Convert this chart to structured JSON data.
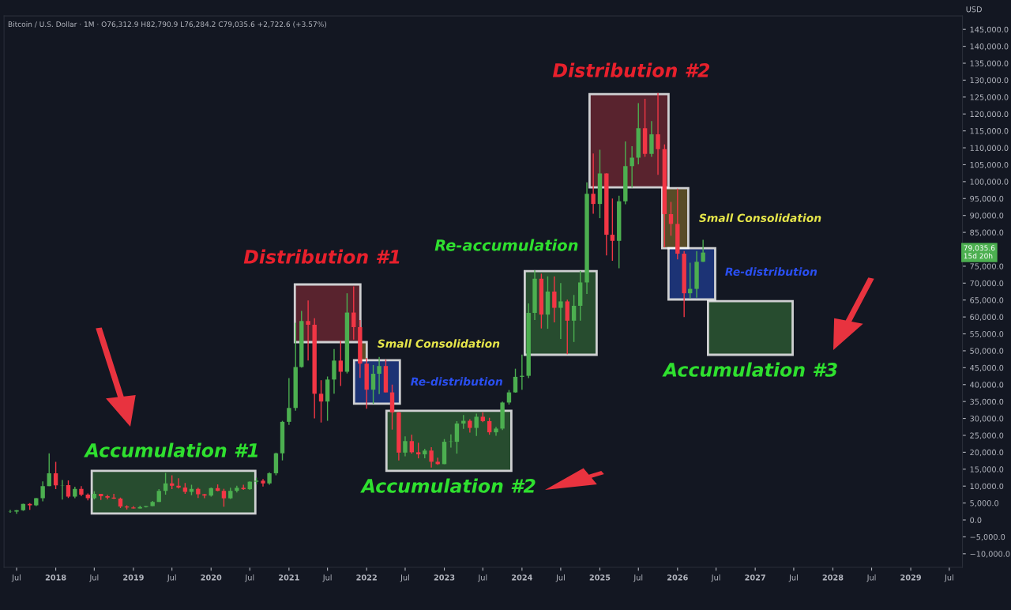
{
  "chart_data": {
    "type": "candlestick",
    "title": "Bitcoin / U.S. Dollar · 1M · O76,312.9 H82,790.9 L76,284.2 C79,035.6 +2,722.6 (+3.57%)",
    "ylabel": "USD",
    "x": [
      "2017-06-01",
      "2017-07-01",
      "2017-08-01",
      "2017-09-01",
      "2017-10-01",
      "2017-11-01",
      "2017-12-01",
      "2018-01-01",
      "2018-02-01",
      "2018-03-01",
      "2018-04-01",
      "2018-05-01",
      "2018-06-01",
      "2018-07-01",
      "2018-08-01",
      "2018-09-01",
      "2018-10-01",
      "2018-11-01",
      "2018-12-01",
      "2019-01-01",
      "2019-02-01",
      "2019-03-01",
      "2019-04-01",
      "2019-05-01",
      "2019-06-01",
      "2019-07-01",
      "2019-08-01",
      "2019-09-01",
      "2019-10-01",
      "2019-11-01",
      "2019-12-01",
      "2020-01-01",
      "2020-02-01",
      "2020-03-01",
      "2020-04-01",
      "2020-05-01",
      "2020-06-01",
      "2020-07-01",
      "2020-08-01",
      "2020-09-01",
      "2020-10-01",
      "2020-11-01",
      "2020-12-01",
      "2021-01-01",
      "2021-02-01",
      "2021-03-01",
      "2021-04-01",
      "2021-05-01",
      "2021-06-01",
      "2021-07-01",
      "2021-08-01",
      "2021-09-01",
      "2021-10-01",
      "2021-11-01",
      "2021-12-01",
      "2022-01-01",
      "2022-02-01",
      "2022-03-01",
      "2022-04-01",
      "2022-05-01",
      "2022-06-01",
      "2022-07-01",
      "2022-08-01",
      "2022-09-01",
      "2022-10-01",
      "2022-11-01",
      "2022-12-01",
      "2023-01-01",
      "2023-02-01",
      "2023-03-01",
      "2023-04-01",
      "2023-05-01",
      "2023-06-01",
      "2023-07-01",
      "2023-08-01",
      "2023-09-01",
      "2023-10-01",
      "2023-11-01",
      "2023-12-01",
      "2024-01-01",
      "2024-02-01",
      "2024-03-01",
      "2024-04-01",
      "2024-05-01",
      "2024-06-01",
      "2024-07-01",
      "2024-08-01",
      "2024-09-01",
      "2024-10-01",
      "2024-11-01",
      "2024-12-01",
      "2025-01-01",
      "2025-02-01",
      "2025-03-01",
      "2025-04-01",
      "2025-05-01",
      "2025-06-01",
      "2025-07-01",
      "2025-08-01",
      "2025-09-01",
      "2025-10-01",
      "2025-11-01",
      "2025-12-01",
      "2026-01-01",
      "2026-02-01",
      "2026-03-01",
      "2026-04-01",
      "2026-05-01"
    ],
    "ohlc": [
      [
        2400,
        2980,
        2100,
        2480
      ],
      [
        2480,
        2950,
        1830,
        2870
      ],
      [
        2870,
        4770,
        2670,
        4730
      ],
      [
        4730,
        4980,
        2970,
        4340
      ],
      [
        4340,
        6470,
        4110,
        6440
      ],
      [
        6440,
        11400,
        5500,
        10000
      ],
      [
        10000,
        19700,
        10000,
        13800
      ],
      [
        13800,
        17200,
        9100,
        10200
      ],
      [
        10200,
        11800,
        6000,
        10300
      ],
      [
        10300,
        11700,
        6500,
        6900
      ],
      [
        6900,
        9800,
        6400,
        9200
      ],
      [
        9200,
        10000,
        7000,
        7500
      ],
      [
        7500,
        7800,
        5800,
        6400
      ],
      [
        6400,
        8500,
        6100,
        7700
      ],
      [
        7700,
        7700,
        5900,
        7000
      ],
      [
        7000,
        7400,
        6100,
        6600
      ],
      [
        6600,
        7700,
        6200,
        6300
      ],
      [
        6300,
        6600,
        3500,
        4000
      ],
      [
        4000,
        4300,
        3100,
        3700
      ],
      [
        3700,
        4100,
        3400,
        3400
      ],
      [
        3400,
        4200,
        3400,
        3800
      ],
      [
        3800,
        4100,
        3700,
        4100
      ],
      [
        4100,
        5600,
        4100,
        5300
      ],
      [
        5300,
        9100,
        5300,
        8600
      ],
      [
        8600,
        13900,
        7500,
        10800
      ],
      [
        10800,
        13200,
        9100,
        10100
      ],
      [
        10100,
        12300,
        9300,
        9600
      ],
      [
        9600,
        10900,
        7700,
        8300
      ],
      [
        8300,
        10400,
        7300,
        9200
      ],
      [
        9200,
        9500,
        6500,
        7600
      ],
      [
        7600,
        7700,
        6400,
        7200
      ],
      [
        7200,
        9600,
        6900,
        9400
      ],
      [
        9400,
        10500,
        8500,
        8600
      ],
      [
        8600,
        9200,
        3900,
        6400
      ],
      [
        6400,
        9500,
        6200,
        8600
      ],
      [
        8600,
        10100,
        8100,
        9500
      ],
      [
        9500,
        10400,
        8900,
        9100
      ],
      [
        9100,
        11400,
        8900,
        11300
      ],
      [
        11300,
        12500,
        10500,
        11600
      ],
      [
        11600,
        12100,
        9900,
        10800
      ],
      [
        10800,
        14100,
        10400,
        13800
      ],
      [
        13800,
        19900,
        13200,
        19700
      ],
      [
        19700,
        29300,
        17600,
        29000
      ],
      [
        29000,
        41900,
        28100,
        33100
      ],
      [
        33100,
        58300,
        32300,
        45200
      ],
      [
        45200,
        61800,
        45000,
        58800
      ],
      [
        58800,
        64900,
        47100,
        57700
      ],
      [
        57700,
        59600,
        30000,
        37300
      ],
      [
        37300,
        41300,
        28800,
        35000
      ],
      [
        35000,
        42400,
        29300,
        41500
      ],
      [
        41500,
        50500,
        37300,
        47100
      ],
      [
        47100,
        52900,
        39600,
        43800
      ],
      [
        43800,
        67000,
        43300,
        61300
      ],
      [
        61300,
        69000,
        53300,
        57000
      ],
      [
        57000,
        59100,
        42000,
        46200
      ],
      [
        46200,
        47900,
        32900,
        38500
      ],
      [
        38500,
        45800,
        34300,
        43200
      ],
      [
        43200,
        48200,
        37200,
        45500
      ],
      [
        45500,
        47400,
        37700,
        37700
      ],
      [
        37700,
        40000,
        26700,
        31800
      ],
      [
        31800,
        31900,
        17600,
        19900
      ],
      [
        19900,
        24700,
        18800,
        23300
      ],
      [
        23300,
        25200,
        19600,
        20000
      ],
      [
        20000,
        22800,
        18200,
        19400
      ],
      [
        19400,
        21000,
        18200,
        20500
      ],
      [
        20500,
        21500,
        15500,
        17200
      ],
      [
        17200,
        18400,
        16300,
        16500
      ],
      [
        16500,
        23900,
        16500,
        23100
      ],
      [
        23100,
        25300,
        21400,
        23200
      ],
      [
        23100,
        29200,
        19600,
        28500
      ],
      [
        28500,
        31000,
        26900,
        29300
      ],
      [
        29300,
        29800,
        25800,
        27200
      ],
      [
        27200,
        31400,
        24800,
        30500
      ],
      [
        30500,
        31800,
        28900,
        29200
      ],
      [
        29200,
        30200,
        25200,
        25900
      ],
      [
        25900,
        27500,
        24900,
        27000
      ],
      [
        27000,
        35000,
        26600,
        34700
      ],
      [
        34700,
        38400,
        34100,
        37700
      ],
      [
        37700,
        44700,
        37600,
        42300
      ],
      [
        42300,
        48900,
        38500,
        42600
      ],
      [
        42600,
        64000,
        41900,
        61200
      ],
      [
        61200,
        73800,
        59100,
        71300
      ],
      [
        71300,
        72800,
        56600,
        60700
      ],
      [
        60700,
        72000,
        56500,
        67500
      ],
      [
        67500,
        72000,
        58400,
        62700
      ],
      [
        62700,
        70000,
        53500,
        64600
      ],
      [
        64600,
        65100,
        49000,
        58900
      ],
      [
        58900,
        66500,
        52600,
        63300
      ],
      [
        63300,
        73600,
        58900,
        70200
      ],
      [
        70200,
        99800,
        66800,
        96400
      ],
      [
        96400,
        108300,
        90500,
        93400
      ],
      [
        93400,
        109400,
        89200,
        102400
      ],
      [
        102400,
        102500,
        78200,
        84300
      ],
      [
        84300,
        95000,
        76600,
        82500
      ],
      [
        82500,
        95800,
        74400,
        94200
      ],
      [
        94200,
        111900,
        93300,
        104600
      ],
      [
        104600,
        110500,
        98200,
        107100
      ],
      [
        107100,
        123200,
        105100,
        115800
      ],
      [
        115800,
        124500,
        107300,
        108200
      ],
      [
        108200,
        117900,
        107300,
        114000
      ],
      [
        114000,
        126200,
        102000,
        109600
      ],
      [
        109600,
        111000,
        80600,
        90400
      ],
      [
        90400,
        94000,
        84000,
        87500
      ],
      [
        87500,
        97900,
        77000,
        78700
      ],
      [
        78700,
        79500,
        60000,
        67000
      ],
      [
        67000,
        76000,
        65500,
        68300
      ],
      [
        68300,
        79500,
        65700,
        76300
      ],
      [
        76312.9,
        82790.9,
        76284.2,
        79035.6
      ]
    ],
    "xlim": [
      "2017-05-03",
      "2029-09-01"
    ],
    "xticks": [
      {
        "value": "2017-07-01",
        "label": "Jul"
      },
      {
        "value": "2018-01-01",
        "label": "2018"
      },
      {
        "value": "2018-07-01",
        "label": "Jul"
      },
      {
        "value": "2019-01-01",
        "label": "2019"
      },
      {
        "value": "2019-07-01",
        "label": "Jul"
      },
      {
        "value": "2020-01-01",
        "label": "2020"
      },
      {
        "value": "2020-07-01",
        "label": "Jul"
      },
      {
        "value": "2021-01-01",
        "label": "2021"
      },
      {
        "value": "2021-07-01",
        "label": "Jul"
      },
      {
        "value": "2022-01-01",
        "label": "2022"
      },
      {
        "value": "2022-07-01",
        "label": "Jul"
      },
      {
        "value": "2023-01-01",
        "label": "2023"
      },
      {
        "value": "2023-07-01",
        "label": "Jul"
      },
      {
        "value": "2024-01-01",
        "label": "2024"
      },
      {
        "value": "2024-07-01",
        "label": "Jul"
      },
      {
        "value": "2025-01-01",
        "label": "2025"
      },
      {
        "value": "2025-07-01",
        "label": "Jul"
      },
      {
        "value": "2026-01-01",
        "label": "2026"
      },
      {
        "value": "2026-07-01",
        "label": "Jul"
      },
      {
        "value": "2027-01-01",
        "label": "2027"
      },
      {
        "value": "2027-07-01",
        "label": "Jul"
      },
      {
        "value": "2028-01-01",
        "label": "2028"
      },
      {
        "value": "2028-07-01",
        "label": "Jul"
      },
      {
        "value": "2029-01-01",
        "label": "2029"
      },
      {
        "value": "2029-07-01",
        "label": "Jul"
      }
    ],
    "ylim": [
      -14000,
      149000
    ],
    "yticks": [
      {
        "value": -10000,
        "label": "−10,000.0"
      },
      {
        "value": -5000,
        "label": "−5,000.0"
      },
      {
        "value": 0,
        "label": "0.0"
      },
      {
        "value": 5000,
        "label": "5,000.0"
      },
      {
        "value": 10000,
        "label": "10,000.0"
      },
      {
        "value": 15000,
        "label": "15,000.0"
      },
      {
        "value": 20000,
        "label": "20,000.0"
      },
      {
        "value": 25000,
        "label": "25,000.0"
      },
      {
        "value": 30000,
        "label": "30,000.0"
      },
      {
        "value": 35000,
        "label": "35,000.0"
      },
      {
        "value": 40000,
        "label": "40,000.0"
      },
      {
        "value": 45000,
        "label": "45,000.0"
      },
      {
        "value": 50000,
        "label": "50,000.0"
      },
      {
        "value": 55000,
        "label": "55,000.0"
      },
      {
        "value": 60000,
        "label": "60,000.0"
      },
      {
        "value": 65000,
        "label": "65,000.0"
      },
      {
        "value": 70000,
        "label": "70,000.0"
      },
      {
        "value": 75000,
        "label": "75,000.0"
      },
      {
        "value": 80000,
        "label": null
      },
      {
        "value": 85000,
        "label": "85,000.0"
      },
      {
        "value": 90000,
        "label": "90,000.0"
      },
      {
        "value": 95000,
        "label": "95,000.0"
      },
      {
        "value": 100000,
        "label": "100,000.0"
      },
      {
        "value": 105000,
        "label": "105,000.0"
      },
      {
        "value": 110000,
        "label": "110,000.0"
      },
      {
        "value": 115000,
        "label": "115,000.0"
      },
      {
        "value": 120000,
        "label": "120,000.0"
      },
      {
        "value": 125000,
        "label": "125,000.0"
      },
      {
        "value": 130000,
        "label": "130,000.0"
      },
      {
        "value": 135000,
        "label": "135,000.0"
      },
      {
        "value": 140000,
        "label": "140,000.0"
      },
      {
        "value": 145000,
        "label": "145,000.0"
      }
    ],
    "grid": false,
    "annotations": [
      "Accumulation #1",
      "Distribution #1",
      "Small Consolidation",
      "Re-distribution",
      "Accumulation #2",
      "Re-accumulation",
      "Distribution #2",
      "Small Consolidation",
      "Re-distribution",
      "Accumulation #3",
      "79,035.6\n15d 20h"
    ]
  }
}
